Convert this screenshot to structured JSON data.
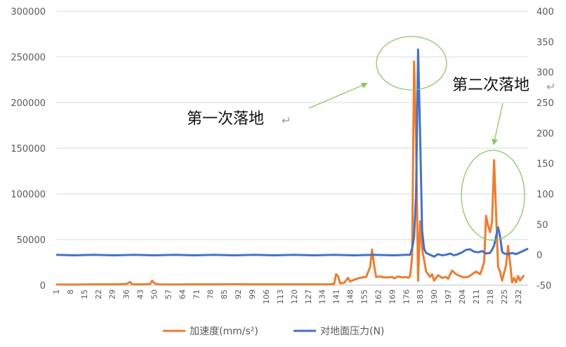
{
  "chart_data": {
    "type": "line",
    "x_start": 1,
    "x_count": 237,
    "x_tick_labels": [
      "1",
      "8",
      "15",
      "22",
      "29",
      "36",
      "43",
      "50",
      "57",
      "64",
      "71",
      "78",
      "85",
      "92",
      "99",
      "106",
      "113",
      "120",
      "127",
      "134",
      "141",
      "148",
      "155",
      "162",
      "169",
      "176",
      "183",
      "190",
      "197",
      "204",
      "211",
      "218",
      "225",
      "232"
    ],
    "y_left": {
      "ticks": [
        "0",
        "50000",
        "100000",
        "150000",
        "200000",
        "250000",
        "300000"
      ],
      "lim": [
        0,
        300000
      ]
    },
    "y_right": {
      "ticks": [
        "-50",
        "0",
        "50",
        "100",
        "150",
        "200",
        "250",
        "300",
        "350",
        "400"
      ],
      "lim": [
        -50,
        400
      ]
    },
    "grid": true,
    "legend_position": "bottom",
    "series": [
      {
        "name": "加速度(mm/s²)",
        "axis": "left",
        "color": "#ED7D31",
        "points": [
          [
            1,
            800
          ],
          [
            10,
            700
          ],
          [
            20,
            1000
          ],
          [
            30,
            900
          ],
          [
            36,
            1200
          ],
          [
            38,
            3500
          ],
          [
            39,
            1000
          ],
          [
            45,
            900
          ],
          [
            48,
            1200
          ],
          [
            49,
            5000
          ],
          [
            50,
            2200
          ],
          [
            52,
            900
          ],
          [
            60,
            800
          ],
          [
            70,
            1000
          ],
          [
            80,
            900
          ],
          [
            90,
            1100
          ],
          [
            100,
            900
          ],
          [
            110,
            1000
          ],
          [
            120,
            900
          ],
          [
            130,
            1000
          ],
          [
            138,
            1000
          ],
          [
            140,
            1500
          ],
          [
            141,
            12000
          ],
          [
            142,
            10000
          ],
          [
            143,
            2000
          ],
          [
            145,
            2500
          ],
          [
            147,
            8000
          ],
          [
            148,
            4000
          ],
          [
            150,
            6000
          ],
          [
            152,
            7500
          ],
          [
            154,
            8500
          ],
          [
            156,
            9000
          ],
          [
            158,
            20000
          ],
          [
            159,
            39000
          ],
          [
            160,
            22000
          ],
          [
            161,
            9000
          ],
          [
            163,
            9500
          ],
          [
            165,
            8500
          ],
          [
            167,
            8500
          ],
          [
            169,
            9000
          ],
          [
            170,
            7500
          ],
          [
            172,
            9500
          ],
          [
            174,
            8500
          ],
          [
            176,
            9000
          ],
          [
            177,
            8000
          ],
          [
            178,
            10000
          ],
          [
            179,
            30000
          ],
          [
            180,
            245000
          ],
          [
            181,
            160000
          ],
          [
            182,
            5000
          ],
          [
            183,
            70000
          ],
          [
            184,
            40000
          ],
          [
            186,
            15000
          ],
          [
            188,
            9000
          ],
          [
            189,
            12000
          ],
          [
            190,
            5000
          ],
          [
            192,
            11000
          ],
          [
            194,
            8000
          ],
          [
            196,
            9000
          ],
          [
            197,
            7000
          ],
          [
            199,
            16000
          ],
          [
            201,
            12000
          ],
          [
            203,
            10000
          ],
          [
            205,
            8500
          ],
          [
            207,
            9000
          ],
          [
            209,
            12000
          ],
          [
            211,
            15000
          ],
          [
            213,
            12000
          ],
          [
            214,
            18000
          ],
          [
            215,
            25000
          ],
          [
            216,
            76000
          ],
          [
            217,
            65000
          ],
          [
            218,
            58000
          ],
          [
            219,
            70000
          ],
          [
            220,
            137000
          ],
          [
            221,
            80000
          ],
          [
            222,
            20000
          ],
          [
            223,
            15000
          ],
          [
            224,
            5000
          ],
          [
            226,
            22000
          ],
          [
            227,
            43000
          ],
          [
            228,
            25000
          ],
          [
            229,
            3000
          ],
          [
            230,
            8000
          ],
          [
            231,
            3000
          ],
          [
            232,
            10000
          ],
          [
            233,
            5000
          ],
          [
            235,
            11000
          ]
        ]
      },
      {
        "name": "对地面压力(N)",
        "axis": "right",
        "color": "#4472C4",
        "points": [
          [
            1,
            0
          ],
          [
            10,
            -1
          ],
          [
            20,
            0
          ],
          [
            30,
            -1
          ],
          [
            40,
            0
          ],
          [
            50,
            -1
          ],
          [
            60,
            0
          ],
          [
            70,
            -1
          ],
          [
            80,
            0
          ],
          [
            90,
            -1
          ],
          [
            100,
            0
          ],
          [
            110,
            -1
          ],
          [
            120,
            0
          ],
          [
            130,
            -1
          ],
          [
            140,
            0
          ],
          [
            150,
            -1
          ],
          [
            160,
            0
          ],
          [
            170,
            -1
          ],
          [
            176,
            0
          ],
          [
            178,
            0
          ],
          [
            179,
            10
          ],
          [
            180,
            30
          ],
          [
            181,
            100
          ],
          [
            182,
            337
          ],
          [
            183,
            200
          ],
          [
            184,
            40
          ],
          [
            185,
            10
          ],
          [
            186,
            3
          ],
          [
            188,
            0
          ],
          [
            190,
            -3
          ],
          [
            192,
            1
          ],
          [
            194,
            -1
          ],
          [
            196,
            0
          ],
          [
            198,
            2
          ],
          [
            200,
            -1
          ],
          [
            202,
            1
          ],
          [
            204,
            4
          ],
          [
            206,
            8
          ],
          [
            208,
            9
          ],
          [
            210,
            5
          ],
          [
            212,
            4
          ],
          [
            214,
            6
          ],
          [
            216,
            2
          ],
          [
            218,
            3
          ],
          [
            219,
            8
          ],
          [
            220,
            15
          ],
          [
            221,
            30
          ],
          [
            222,
            45
          ],
          [
            223,
            30
          ],
          [
            224,
            5
          ],
          [
            225,
            2
          ],
          [
            227,
            1
          ],
          [
            229,
            3
          ],
          [
            231,
            1
          ],
          [
            233,
            4
          ],
          [
            235,
            7
          ],
          [
            237,
            10
          ]
        ]
      }
    ],
    "annotations": [
      {
        "text": "第一次落地"
      },
      {
        "text": "第二次落地"
      }
    ]
  }
}
